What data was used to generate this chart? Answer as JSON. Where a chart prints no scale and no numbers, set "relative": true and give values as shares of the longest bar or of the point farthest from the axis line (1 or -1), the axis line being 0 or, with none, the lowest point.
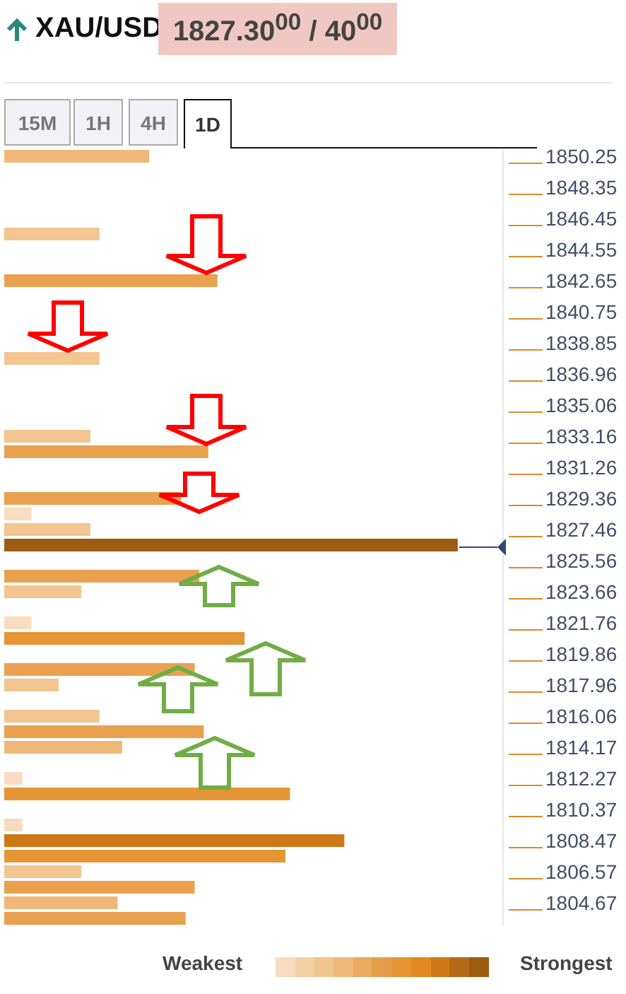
{
  "chart_data": {
    "type": "bar",
    "orientation": "horizontal",
    "relative": true,
    "title": "XAU/USD",
    "subtitle": "1827.30$^{00}$ / 40$^{00}$",
    "annotations": [
      "15M",
      "1H",
      "4H",
      "1D",
      "Weakest",
      "Strongest"
    ],
    "categories": [
      "1850.25",
      null,
      "1848.35",
      null,
      "1846.45",
      null,
      "1844.55",
      null,
      "1842.65",
      null,
      "1840.75",
      null,
      "1838.85",
      null,
      "1836.96",
      null,
      "1835.06",
      null,
      "1833.16",
      null,
      "1831.26",
      null,
      "1829.36",
      null,
      "1827.46",
      null,
      "1825.56",
      null,
      "1823.66",
      null,
      "1821.76",
      null,
      "1819.86",
      null,
      "1817.96",
      null,
      "1816.06",
      null,
      "1814.17",
      null,
      "1812.27",
      null,
      "1810.37",
      null,
      "1808.47",
      null,
      "1806.57",
      null,
      "1804.67",
      null
    ],
    "values": [
      0.32,
      null,
      null,
      null,
      null,
      0.21,
      null,
      null,
      0.47,
      null,
      null,
      null,
      null,
      0.21,
      null,
      null,
      null,
      null,
      0.19,
      0.45,
      null,
      null,
      0.39,
      0.06,
      0.19,
      1,
      null,
      0.43,
      0.17,
      null,
      0.06,
      0.53,
      null,
      0.42,
      0.12,
      null,
      0.21,
      0.44,
      0.26,
      null,
      0.04,
      0.63,
      null,
      0.04,
      0.75,
      0.62,
      0.17,
      0.42,
      0.25,
      0.4
    ],
    "colors": [
      "#efb878",
      null,
      null,
      null,
      null,
      "#f2c591",
      null,
      null,
      "#e9a150",
      null,
      null,
      null,
      null,
      "#f2c591",
      null,
      null,
      null,
      null,
      "#f2c591",
      "#e9a150",
      null,
      null,
      "#e9a150",
      "#f7dcbf",
      "#f2c591",
      "#9c5c12",
      null,
      "#e9a150",
      "#f2c591",
      null,
      "#f7dcbf",
      "#e69534",
      null,
      "#e9a150",
      "#f2c591",
      null,
      "#f2c591",
      "#e9a150",
      "#efb878",
      null,
      "#f7dcbf",
      "#e69534",
      null,
      "#f7dcbf",
      "#cc7818",
      "#e69534",
      "#f2c591",
      "#e9a150",
      "#efb878",
      "#e9a150"
    ]
  }
}
